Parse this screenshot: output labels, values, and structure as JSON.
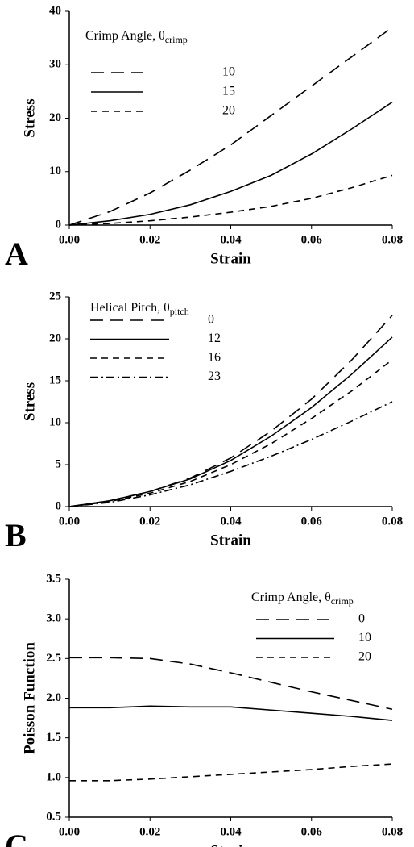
{
  "chart_data": [
    {
      "type": "line",
      "panel_label": "A",
      "xlabel": "Strain",
      "ylabel": "Stress",
      "legend_title": "Crimp Angle, θ",
      "legend_title_sub": "crimp",
      "legend_corner": "upper left",
      "x": [
        0,
        0.01,
        0.02,
        0.03,
        0.04,
        0.05,
        0.06,
        0.07,
        0.08
      ],
      "xlim": [
        0,
        0.08
      ],
      "ylim": [
        0,
        40
      ],
      "xticks": [
        {
          "value": 0,
          "label": "0.00"
        },
        0.02,
        0.04,
        0.06,
        0.08
      ],
      "yticks": [
        0,
        10,
        20,
        30,
        40
      ],
      "series": [
        {
          "name": "10",
          "color": "#000",
          "style": "long-dash",
          "values": [
            0,
            2.5,
            6,
            10.3,
            15,
            20.5,
            26,
            31.5,
            37
          ]
        },
        {
          "name": "15",
          "color": "#000",
          "style": "solid",
          "values": [
            0,
            0.8,
            2,
            3.8,
            6.3,
            9.3,
            13.3,
            18,
            23
          ]
        },
        {
          "name": "20",
          "color": "#000",
          "style": "short-dash",
          "values": [
            0,
            0.3,
            0.8,
            1.5,
            2.4,
            3.5,
            5,
            7,
            9.3
          ]
        }
      ]
    },
    {
      "type": "line",
      "panel_label": "B",
      "xlabel": "Strain",
      "ylabel": "Stress",
      "legend_title": "Helical Pitch, θ",
      "legend_title_sub": "pitch",
      "legend_corner": "upper left",
      "x": [
        0,
        0.01,
        0.02,
        0.03,
        0.04,
        0.05,
        0.06,
        0.07,
        0.08
      ],
      "xlim": [
        0,
        0.08
      ],
      "ylim": [
        0,
        25
      ],
      "xticks": [
        {
          "value": 0,
          "label": "0.00"
        },
        0.02,
        0.04,
        0.06,
        0.08
      ],
      "yticks": [
        0,
        5,
        10,
        15,
        20,
        25
      ],
      "series": [
        {
          "name": "0",
          "color": "#000",
          "style": "long-dash",
          "values": [
            0,
            0.7,
            1.8,
            3.4,
            5.8,
            9,
            12.8,
            17.5,
            22.8
          ]
        },
        {
          "name": "12",
          "color": "#000",
          "style": "solid",
          "values": [
            0,
            0.7,
            1.8,
            3.3,
            5.5,
            8.4,
            11.8,
            15.8,
            20.2
          ]
        },
        {
          "name": "16",
          "color": "#000",
          "style": "short-dash",
          "values": [
            0,
            0.6,
            1.6,
            3,
            5,
            7.5,
            10.5,
            13.8,
            17.5
          ]
        },
        {
          "name": "23",
          "color": "#000",
          "style": "dash-dot",
          "values": [
            0,
            0.5,
            1.4,
            2.6,
            4.2,
            6,
            8,
            10.2,
            12.5
          ]
        }
      ]
    },
    {
      "type": "line",
      "panel_label": "C",
      "xlabel": "Strain",
      "ylabel": "Poisson Function",
      "legend_title": "Crimp Angle, θ",
      "legend_title_sub": "crimp",
      "legend_corner": "upper right",
      "x": [
        0,
        0.01,
        0.02,
        0.03,
        0.04,
        0.05,
        0.06,
        0.07,
        0.08
      ],
      "xlim": [
        0,
        0.08
      ],
      "ylim": [
        0.5,
        3.5
      ],
      "xticks": [
        {
          "value": 0,
          "label": "0.00"
        },
        0.02,
        0.04,
        0.06,
        0.08
      ],
      "yticks": [
        0.5,
        {
          "value": 1,
          "label": "1.0"
        },
        1.5,
        {
          "value": 2,
          "label": "2.0"
        },
        2.5,
        {
          "value": 3,
          "label": "3.0"
        },
        3.5
      ],
      "series": [
        {
          "name": "0",
          "color": "#000",
          "style": "long-dash",
          "values": [
            2.51,
            2.51,
            2.5,
            2.43,
            2.32,
            2.2,
            2.08,
            1.97,
            1.86
          ]
        },
        {
          "name": "10",
          "color": "#000",
          "style": "solid",
          "values": [
            1.88,
            1.88,
            1.9,
            1.89,
            1.89,
            1.85,
            1.81,
            1.77,
            1.72
          ]
        },
        {
          "name": "20",
          "color": "#000",
          "style": "short-dash",
          "values": [
            0.96,
            0.96,
            0.98,
            1.01,
            1.04,
            1.07,
            1.1,
            1.14,
            1.17
          ]
        }
      ]
    }
  ]
}
